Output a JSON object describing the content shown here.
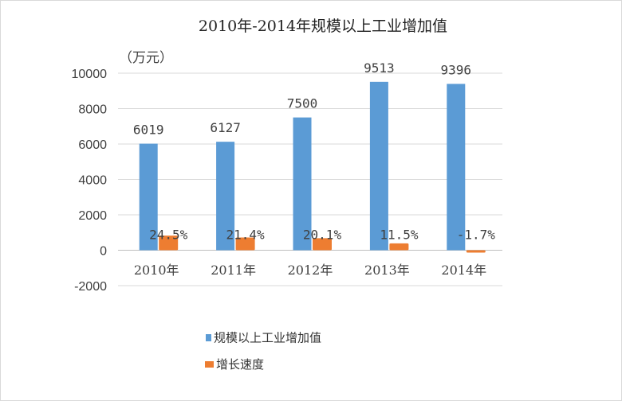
{
  "chart_data": {
    "type": "bar",
    "title": "2010年-2014年规模以上工业增加值",
    "unit_label": "（万元）",
    "categories": [
      "2010年",
      "2011年",
      "2012年",
      "2013年",
      "2014年"
    ],
    "series": [
      {
        "name": "规模以上工业增加值",
        "values": [
          6019,
          6127,
          7500,
          9513,
          9396
        ],
        "labels": [
          "6019",
          "6127",
          "7500",
          "9513",
          "9396"
        ],
        "color": "#5b9bd5"
      },
      {
        "name": "增长速度",
        "values": [
          24.5,
          21.4,
          20.1,
          11.5,
          -1.7
        ],
        "labels": [
          "24.5%",
          "21.4%",
          "20.1%",
          "11.5%",
          "-1.7%"
        ],
        "color": "#ed7d31"
      }
    ],
    "y_ticks": [
      "10000",
      "8000",
      "6000",
      "4000",
      "2000",
      "0",
      "-2000"
    ],
    "ylim": [
      -2000,
      10000
    ],
    "grid": true,
    "legend_position": "bottom"
  }
}
